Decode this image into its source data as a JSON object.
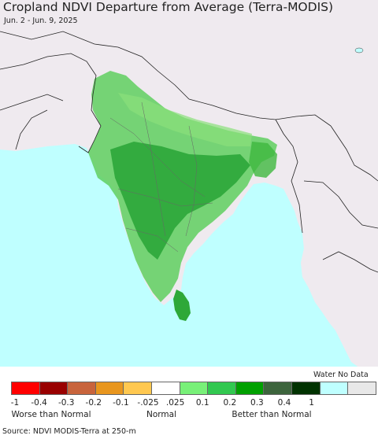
{
  "title": "Cropland NDVI Departure from Average (Terra-MODIS)",
  "subtitle": "Jun. 2 - Jun. 9, 2025",
  "source": "Source: NDVI MODIS-Terra at 250-m",
  "colors": {
    "ocean": "#bfffff",
    "land": "#efeaef",
    "border": "#222222"
  },
  "legend": {
    "water_nodata_label": "Water No Data",
    "swatches": [
      "#ff0000",
      "#990000",
      "#c8643c",
      "#e8961e",
      "#ffc850",
      "#ffffff",
      "#78f078",
      "#32c850",
      "#00a000",
      "#3c643c",
      "#003200",
      "#bfffff",
      "#e8e8e8"
    ],
    "ticks": [
      "-1",
      "-0.4",
      "-0.3",
      "-0.2",
      "-0.1",
      "-.025",
      ".025",
      "0.1",
      "0.2",
      "0.3",
      "0.4",
      "1"
    ],
    "categories": [
      "Worse than Normal",
      "Normal",
      "Better than Normal"
    ]
  }
}
